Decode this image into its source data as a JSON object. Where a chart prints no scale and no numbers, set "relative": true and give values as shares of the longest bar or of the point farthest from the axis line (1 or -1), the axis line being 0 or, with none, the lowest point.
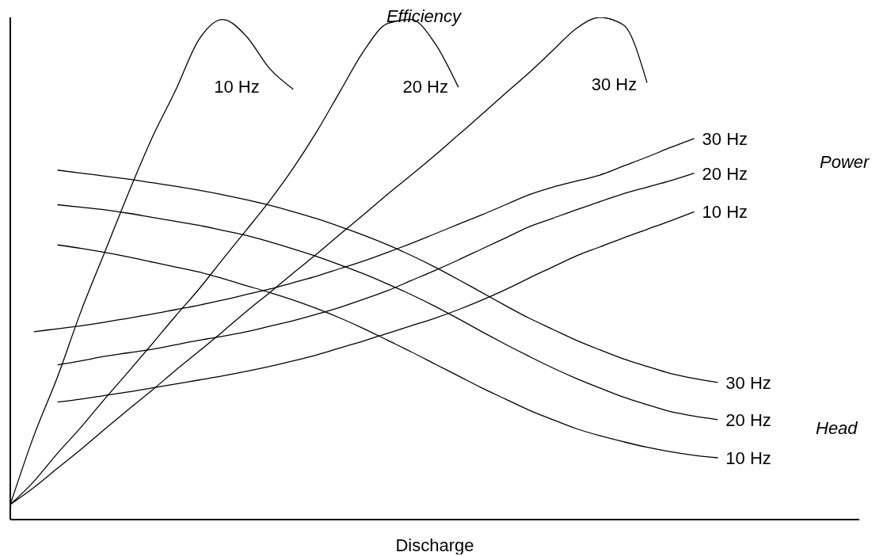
{
  "chart_data": {
    "type": "line",
    "relative": true,
    "xlabel": "Discharge",
    "categories": [
      null,
      null,
      null,
      null,
      null,
      null,
      null,
      null,
      null,
      null,
      null,
      null,
      null,
      null,
      null,
      null,
      null,
      null,
      null,
      null,
      null,
      null,
      null,
      null,
      null,
      null,
      null,
      null,
      null,
      null,
      null,
      null,
      null,
      null,
      null,
      null,
      null
    ],
    "annotations": [
      "Efficiency",
      "Power",
      "Head"
    ],
    "series": [
      {
        "name": "10 Hz",
        "color": "#000000",
        "values": [
          0.03,
          0.167,
          0.284,
          0.415,
          0.532,
          0.649,
          0.759,
          0.854,
          0.956,
          0.996,
          0.963,
          0.898,
          0.857,
          null,
          null,
          null,
          null,
          null,
          null,
          null,
          null,
          null,
          null,
          null,
          null,
          null,
          null,
          null,
          null,
          null,
          null,
          null,
          null,
          null,
          null,
          null,
          null
        ]
      },
      {
        "name": "20 Hz",
        "color": "#000000",
        "values": [
          0.03,
          0.076,
          0.132,
          0.184,
          0.24,
          0.294,
          0.349,
          0.405,
          0.459,
          0.518,
          0.576,
          0.635,
          0.7,
          0.773,
          0.854,
          0.934,
          0.988,
          0.996,
          0.949,
          0.861,
          null,
          null,
          null,
          null,
          null,
          null,
          null,
          null,
          null,
          null,
          null,
          null,
          null,
          null,
          null,
          null,
          null
        ]
      },
      {
        "name": "30 Hz",
        "color": "#000000",
        "values": [
          0.03,
          0.064,
          0.102,
          0.14,
          0.18,
          0.219,
          0.257,
          0.297,
          0.335,
          0.374,
          0.414,
          0.452,
          0.491,
          0.529,
          0.569,
          0.608,
          0.648,
          0.686,
          0.725,
          0.766,
          0.807,
          0.849,
          0.89,
          0.934,
          0.978,
          1,
          0.985,
          0.87,
          null,
          null,
          null,
          null,
          null,
          null,
          null,
          null,
          null
        ]
      },
      {
        "name": "30 Hz",
        "color": "#000000",
        "values": [
          null,
          0.374,
          0.38,
          0.386,
          0.393,
          0.401,
          0.409,
          0.418,
          0.427,
          0.437,
          0.448,
          0.459,
          0.472,
          0.485,
          0.5,
          0.515,
          0.532,
          0.55,
          0.569,
          0.588,
          0.607,
          0.627,
          0.647,
          0.662,
          0.674,
          0.686,
          0.704,
          0.722,
          0.741,
          0.759,
          null,
          null,
          null,
          null,
          null,
          null,
          null
        ]
      },
      {
        "name": "20 Hz",
        "color": "#000000",
        "values": [
          null,
          null,
          0.308,
          0.316,
          0.325,
          0.332,
          0.339,
          0.348,
          0.357,
          0.365,
          0.374,
          0.385,
          0.396,
          0.409,
          0.423,
          0.439,
          0.456,
          0.476,
          0.496,
          0.517,
          0.539,
          0.561,
          0.583,
          0.6,
          0.617,
          0.633,
          0.649,
          0.662,
          0.675,
          0.69,
          null,
          null,
          null,
          null,
          null,
          null,
          null
        ]
      },
      {
        "name": "10 Hz",
        "color": "#000000",
        "values": [
          null,
          null,
          0.234,
          0.24,
          0.247,
          0.254,
          0.262,
          0.27,
          0.278,
          0.286,
          0.295,
          0.305,
          0.316,
          0.328,
          0.342,
          0.356,
          0.371,
          0.386,
          0.401,
          0.418,
          0.437,
          0.458,
          0.481,
          0.503,
          0.525,
          0.543,
          0.561,
          0.578,
          0.595,
          0.613,
          null,
          null,
          null,
          null,
          null,
          null,
          null
        ]
      },
      {
        "name": "30 Hz",
        "color": "#000000",
        "values": [
          null,
          null,
          0.696,
          0.69,
          0.684,
          0.678,
          0.671,
          0.664,
          0.656,
          0.647,
          0.637,
          0.626,
          0.613,
          0.599,
          0.583,
          0.566,
          0.547,
          0.526,
          0.503,
          0.478,
          0.452,
          0.426,
          0.401,
          0.379,
          0.357,
          0.338,
          0.32,
          0.305,
          0.291,
          0.281,
          0.273,
          null,
          null,
          null,
          null,
          null,
          null
        ]
      },
      {
        "name": "20 Hz",
        "color": "#000000",
        "values": [
          null,
          null,
          0.627,
          0.622,
          0.617,
          0.61,
          0.602,
          0.594,
          0.586,
          0.576,
          0.566,
          0.553,
          0.539,
          0.524,
          0.507,
          0.489,
          0.469,
          0.448,
          0.425,
          0.4,
          0.374,
          0.349,
          0.325,
          0.302,
          0.281,
          0.262,
          0.244,
          0.229,
          0.215,
          0.206,
          0.199,
          null,
          null,
          null,
          null,
          null,
          null
        ]
      },
      {
        "name": "10 Hz",
        "color": "#000000",
        "values": [
          null,
          null,
          0.547,
          0.54,
          0.532,
          0.523,
          0.513,
          0.503,
          0.493,
          0.48,
          0.466,
          0.452,
          0.437,
          0.42,
          0.401,
          0.38,
          0.357,
          0.334,
          0.31,
          0.286,
          0.262,
          0.24,
          0.218,
          0.199,
          0.181,
          0.167,
          0.155,
          0.144,
          0.135,
          0.128,
          0.123,
          null,
          null,
          null,
          null,
          null,
          null
        ]
      }
    ]
  }
}
